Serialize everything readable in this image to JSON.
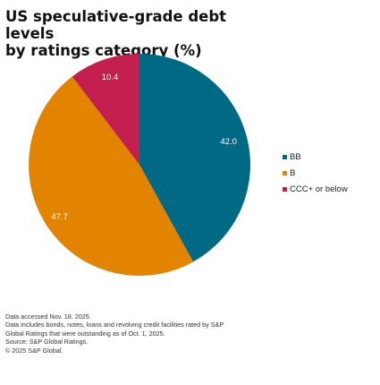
{
  "title_lines": [
    "US speculative-grade debt levels",
    "by ratings category (%)"
  ],
  "chart_data": {
    "type": "pie",
    "title": "US speculative-grade debt levels by ratings category (%)",
    "slices": [
      {
        "label": "BB",
        "value": 42.0,
        "display": "42.0",
        "color": "#006983"
      },
      {
        "label": "B",
        "value": 47.7,
        "display": "47.7",
        "color": "#e38400"
      },
      {
        "label": "CCC+ or below",
        "value": 10.4,
        "display": "10.4",
        "color": "#c21f4e"
      }
    ],
    "start_angle_deg": 0,
    "direction": "clockwise",
    "legend_position": "right",
    "label_color": "#ffffff"
  },
  "notes": [
    "Data accessed Nov. 18, 2025.",
    "Data includes bonds, notes, loans and revolving credit facilities rated by S&P",
    "Global Ratings that were outstanding as of Oct. 1, 2025.",
    "Source: S&P Global Ratings.",
    "© 2025 S&P Global."
  ]
}
